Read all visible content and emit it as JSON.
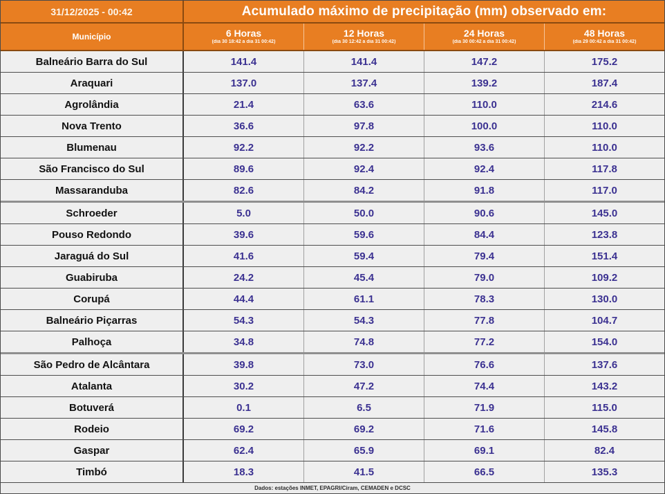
{
  "header": {
    "timestamp": "31/12/2025 - 00:42",
    "title": "Acumulado máximo de precipitação (mm) observado em:"
  },
  "columns": {
    "municipality": "Município",
    "periods": [
      {
        "label": "6 Horas",
        "range": "(dia 30 18:42 a dia 31 00:42)"
      },
      {
        "label": "12 Horas",
        "range": "(dia 30 12:42 a dia 31 00:42)"
      },
      {
        "label": "24 Horas",
        "range": "(dia 30 00:42 a dia 31 00:42)"
      },
      {
        "label": "48 Horas",
        "range": "(dia 29 00:42 a dia 31 00:42)"
      }
    ]
  },
  "rows": [
    {
      "name": "Balneário Barra do Sul",
      "values": [
        "141.4",
        "141.4",
        "147.2",
        "175.2"
      ]
    },
    {
      "name": "Araquari",
      "values": [
        "137.0",
        "137.4",
        "139.2",
        "187.4"
      ]
    },
    {
      "name": "Agrolândia",
      "values": [
        "21.4",
        "63.6",
        "110.0",
        "214.6"
      ]
    },
    {
      "name": "Nova Trento",
      "values": [
        "36.6",
        "97.8",
        "100.0",
        "110.0"
      ]
    },
    {
      "name": "Blumenau",
      "values": [
        "92.2",
        "92.2",
        "93.6",
        "110.0"
      ]
    },
    {
      "name": "São Francisco do Sul",
      "values": [
        "89.6",
        "92.4",
        "92.4",
        "117.8"
      ]
    },
    {
      "name": "Massaranduba",
      "values": [
        "82.6",
        "84.2",
        "91.8",
        "117.0"
      ]
    },
    {
      "name": "Schroeder",
      "values": [
        "5.0",
        "50.0",
        "90.6",
        "145.0"
      ]
    },
    {
      "name": "Pouso Redondo",
      "values": [
        "39.6",
        "59.6",
        "84.4",
        "123.8"
      ]
    },
    {
      "name": "Jaraguá do Sul",
      "values": [
        "41.6",
        "59.4",
        "79.4",
        "151.4"
      ]
    },
    {
      "name": "Guabiruba",
      "values": [
        "24.2",
        "45.4",
        "79.0",
        "109.2"
      ]
    },
    {
      "name": "Corupá",
      "values": [
        "44.4",
        "61.1",
        "78.3",
        "130.0"
      ]
    },
    {
      "name": "Balneário Piçarras",
      "values": [
        "54.3",
        "54.3",
        "77.8",
        "104.7"
      ]
    },
    {
      "name": "Palhoça",
      "values": [
        "34.8",
        "74.8",
        "77.2",
        "154.0"
      ]
    },
    {
      "name": "São Pedro de Alcântara",
      "values": [
        "39.8",
        "73.0",
        "76.6",
        "137.6"
      ]
    },
    {
      "name": "Atalanta",
      "values": [
        "30.2",
        "47.2",
        "74.4",
        "143.2"
      ]
    },
    {
      "name": "Botuverá",
      "values": [
        "0.1",
        "6.5",
        "71.9",
        "115.0"
      ]
    },
    {
      "name": "Rodeio",
      "values": [
        "69.2",
        "69.2",
        "71.6",
        "145.8"
      ]
    },
    {
      "name": "Gaspar",
      "values": [
        "62.4",
        "65.9",
        "69.1",
        "82.4"
      ]
    },
    {
      "name": "Timbó",
      "values": [
        "18.3",
        "41.5",
        "66.5",
        "135.3"
      ]
    }
  ],
  "footer": {
    "source": "Dados: estações INMET, EPAGRI/Ciram, CEMADEN e DCSC"
  },
  "colors": {
    "accent_orange": "#e87e22",
    "header_border_brown": "#8a4a10",
    "value_text": "#3b3191",
    "row_background": "#efefef"
  },
  "chart_data": {
    "type": "table",
    "title": "Acumulado máximo de precipitação (mm) observado em:",
    "timestamp": "31/12/2025 - 00:42",
    "column_headers": [
      "Município",
      "6 Horas (dia 30 18:42 a dia 31 00:42)",
      "12 Horas (dia 30 12:42 a dia 31 00:42)",
      "24 Horas (dia 30 00:42 a dia 31 00:42)",
      "48 Horas (dia 29 00:42 a dia 31 00:42)"
    ],
    "rows": [
      [
        "Balneário Barra do Sul",
        141.4,
        141.4,
        147.2,
        175.2
      ],
      [
        "Araquari",
        137.0,
        137.4,
        139.2,
        187.4
      ],
      [
        "Agrolândia",
        21.4,
        63.6,
        110.0,
        214.6
      ],
      [
        "Nova Trento",
        36.6,
        97.8,
        100.0,
        110.0
      ],
      [
        "Blumenau",
        92.2,
        92.2,
        93.6,
        110.0
      ],
      [
        "São Francisco do Sul",
        89.6,
        92.4,
        92.4,
        117.8
      ],
      [
        "Massaranduba",
        82.6,
        84.2,
        91.8,
        117.0
      ],
      [
        "Schroeder",
        5.0,
        50.0,
        90.6,
        145.0
      ],
      [
        "Pouso Redondo",
        39.6,
        59.6,
        84.4,
        123.8
      ],
      [
        "Jaraguá do Sul",
        41.6,
        59.4,
        79.4,
        151.4
      ],
      [
        "Guabiruba",
        24.2,
        45.4,
        79.0,
        109.2
      ],
      [
        "Corupá",
        44.4,
        61.1,
        78.3,
        130.0
      ],
      [
        "Balneário Piçarras",
        54.3,
        54.3,
        77.8,
        104.7
      ],
      [
        "Palhoça",
        34.8,
        74.8,
        77.2,
        154.0
      ],
      [
        "São Pedro de Alcântara",
        39.8,
        73.0,
        76.6,
        137.6
      ],
      [
        "Atalanta",
        30.2,
        47.2,
        74.4,
        143.2
      ],
      [
        "Botuverá",
        0.1,
        6.5,
        71.9,
        115.0
      ],
      [
        "Rodeio",
        69.2,
        69.2,
        71.6,
        145.8
      ],
      [
        "Gaspar",
        62.4,
        65.9,
        69.1,
        82.4
      ],
      [
        "Timbó",
        18.3,
        41.5,
        66.5,
        135.3
      ]
    ],
    "units": "mm",
    "source": "Dados: estações INMET, EPAGRI/Ciram, CEMADEN e DCSC"
  }
}
